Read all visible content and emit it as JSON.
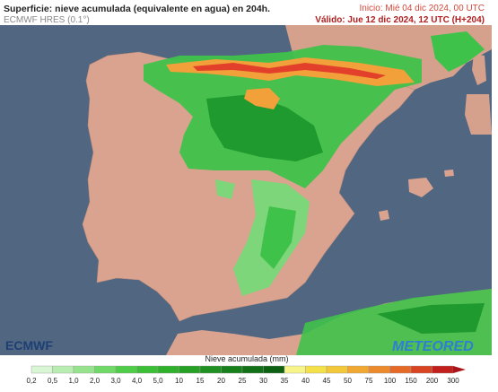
{
  "header": {
    "title": "Superficie: nieve acumulada (equivalente en agua) en 204h.",
    "model": "ECMWF HRES (0.1°)",
    "start": "Inicio: Mié 04 dic 2024, 00 UTC",
    "valid": "Válido: Jue 12 dic 2024, 12 UTC (H+204)"
  },
  "logos": {
    "left": "ECMWF",
    "right": "METEORED"
  },
  "legend": {
    "title": "Nieve acumulada (mm)",
    "labels": [
      "0,2",
      "0,5",
      "1,0",
      "2,0",
      "3,0",
      "4,0",
      "5,0",
      "10",
      "15",
      "20",
      "25",
      "30",
      "35",
      "40",
      "45",
      "50",
      "75",
      "100",
      "150",
      "200",
      "300"
    ]
  }
}
